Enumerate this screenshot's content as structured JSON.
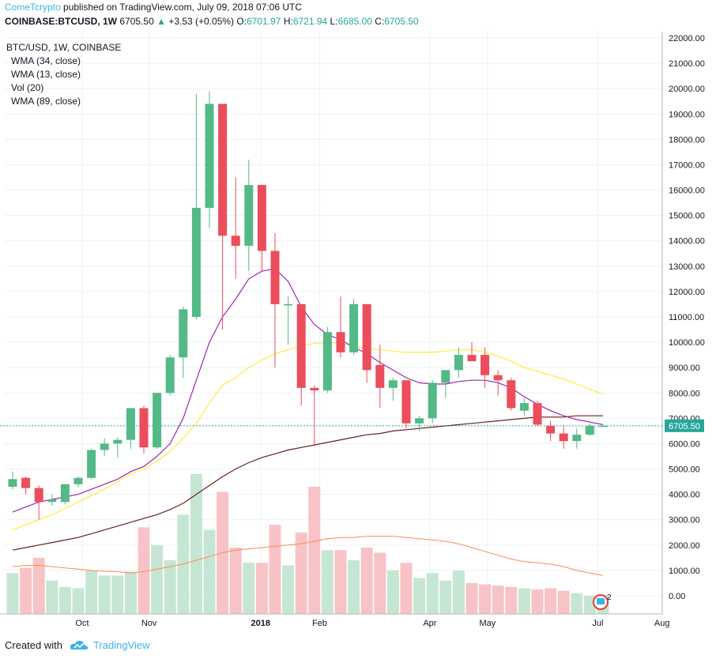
{
  "header": {
    "author": "ComeTcrypto",
    "published_text": "published on TradingView.com, July 09, 2018 07:06 UTC"
  },
  "ohlc": {
    "symbol": "COINBASE:BTCUSD, 1W",
    "last": "6705.50",
    "change": "+3.53 (+0.05%)",
    "open_label": "O:",
    "open": "6701.97",
    "high_label": "H:",
    "high": "6721.94",
    "low_label": "L:",
    "low": "6685.00",
    "close_label": "C:",
    "close": "6705.50"
  },
  "legend": {
    "title": "BTC/USD, 1W, COINBASE",
    "items": [
      "WMA (34, close)",
      "WMA (13, close)",
      "Vol (20)",
      "WMA (89, close)"
    ]
  },
  "price_label": "6705.50",
  "alert_count": "2",
  "footer": {
    "created": "Created with",
    "brand": "TradingView"
  },
  "colors": {
    "up": "#53b987",
    "down": "#eb4d5c",
    "vol_up": "#c5e6d3",
    "vol_down": "#f8c3c6",
    "wma34": "#ffeb3b",
    "wma13": "#9c27b0",
    "wma89": "#6b1e1e",
    "vol_ma": "#ff8a50",
    "grid": "#eef0f3",
    "last_line": "#26a69a"
  },
  "chart_data": {
    "type": "candlestick",
    "title": "BTC/USD, 1W, COINBASE",
    "ylim": [
      -600,
      22200
    ],
    "yticks": [
      0,
      1000,
      2000,
      3000,
      4000,
      5000,
      6000,
      7000,
      8000,
      9000,
      10000,
      11000,
      12000,
      13000,
      14000,
      15000,
      16000,
      17000,
      18000,
      19000,
      20000,
      21000,
      22000
    ],
    "ytick_labels": [
      "0.00",
      "1000.00",
      "2000.00",
      "3000.00",
      "4000.00",
      "5000.00",
      "6000.00",
      "7000.00",
      "8000.00",
      "9000.00",
      "10000.00",
      "11000.00",
      "12000.00",
      "13000.00",
      "14000.00",
      "15000.00",
      "16000.00",
      "17000.00",
      "18000.00",
      "19000.00",
      "20000.00",
      "21000.00",
      "22000.00"
    ],
    "xticks": [
      {
        "label": "Oct",
        "bar": 5.3
      },
      {
        "label": "Nov",
        "bar": 10.4
      },
      {
        "label": "2018",
        "bar": 18.9
      },
      {
        "label": "Feb",
        "bar": 23.4
      },
      {
        "label": "Apr",
        "bar": 31.8
      },
      {
        "label": "May",
        "bar": 36.2
      },
      {
        "label": "Jul",
        "bar": 44.6
      },
      {
        "label": "Aug",
        "bar": 49.5
      }
    ],
    "candles": [
      {
        "o": 4300,
        "h": 4900,
        "l": 4200,
        "c": 4600
      },
      {
        "o": 4650,
        "h": 4700,
        "l": 4000,
        "c": 4250
      },
      {
        "o": 4250,
        "h": 4350,
        "l": 3000,
        "c": 3700
      },
      {
        "o": 3700,
        "h": 4000,
        "l": 3550,
        "c": 3800
      },
      {
        "o": 3700,
        "h": 4400,
        "l": 3600,
        "c": 4400
      },
      {
        "o": 4400,
        "h": 4700,
        "l": 4300,
        "c": 4650
      },
      {
        "o": 4650,
        "h": 5800,
        "l": 4600,
        "c": 5750
      },
      {
        "o": 5750,
        "h": 6200,
        "l": 5500,
        "c": 6000
      },
      {
        "o": 6000,
        "h": 6250,
        "l": 5450,
        "c": 6150
      },
      {
        "o": 6150,
        "h": 7400,
        "l": 5800,
        "c": 7400
      },
      {
        "o": 7400,
        "h": 7500,
        "l": 5600,
        "c": 5850
      },
      {
        "o": 5850,
        "h": 8000,
        "l": 5800,
        "c": 8000
      },
      {
        "o": 8000,
        "h": 9500,
        "l": 7900,
        "c": 9400
      },
      {
        "o": 9400,
        "h": 11400,
        "l": 8600,
        "c": 11300
      },
      {
        "o": 11000,
        "h": 19800,
        "l": 10900,
        "c": 15300
      },
      {
        "o": 15300,
        "h": 19900,
        "l": 14500,
        "c": 19400
      },
      {
        "o": 19400,
        "h": 19400,
        "l": 10500,
        "c": 14200
      },
      {
        "o": 14200,
        "h": 16500,
        "l": 12500,
        "c": 13800
      },
      {
        "o": 13800,
        "h": 17200,
        "l": 12800,
        "c": 16200
      },
      {
        "o": 16200,
        "h": 16200,
        "l": 12800,
        "c": 13600
      },
      {
        "o": 13600,
        "h": 14300,
        "l": 9000,
        "c": 11500
      },
      {
        "o": 11450,
        "h": 11800,
        "l": 9900,
        "c": 11500
      },
      {
        "o": 11500,
        "h": 11500,
        "l": 7500,
        "c": 8200
      },
      {
        "o": 8200,
        "h": 8300,
        "l": 5900,
        "c": 8100
      },
      {
        "o": 8100,
        "h": 10600,
        "l": 8000,
        "c": 10400
      },
      {
        "o": 10400,
        "h": 11800,
        "l": 9400,
        "c": 9600
      },
      {
        "o": 9600,
        "h": 11700,
        "l": 9500,
        "c": 11500
      },
      {
        "o": 11500,
        "h": 11500,
        "l": 8400,
        "c": 8900
      },
      {
        "o": 9100,
        "h": 9900,
        "l": 7400,
        "c": 8200
      },
      {
        "o": 8200,
        "h": 8600,
        "l": 7700,
        "c": 8500
      },
      {
        "o": 8500,
        "h": 8500,
        "l": 6600,
        "c": 6800
      },
      {
        "o": 6800,
        "h": 7100,
        "l": 6500,
        "c": 7000
      },
      {
        "o": 7000,
        "h": 8500,
        "l": 6800,
        "c": 8400
      },
      {
        "o": 8400,
        "h": 8900,
        "l": 7800,
        "c": 8900
      },
      {
        "o": 8900,
        "h": 9800,
        "l": 8600,
        "c": 9500
      },
      {
        "o": 9500,
        "h": 10000,
        "l": 9300,
        "c": 9250
      },
      {
        "o": 9500,
        "h": 9800,
        "l": 8200,
        "c": 8700
      },
      {
        "o": 8700,
        "h": 8900,
        "l": 7900,
        "c": 8500
      },
      {
        "o": 8500,
        "h": 8600,
        "l": 7300,
        "c": 7400
      },
      {
        "o": 7300,
        "h": 7800,
        "l": 7100,
        "c": 7600
      },
      {
        "o": 7600,
        "h": 7700,
        "l": 6700,
        "c": 6750
      },
      {
        "o": 6700,
        "h": 6900,
        "l": 6100,
        "c": 6400
      },
      {
        "o": 6400,
        "h": 6700,
        "l": 5800,
        "c": 6100
      },
      {
        "o": 6100,
        "h": 6600,
        "l": 5800,
        "c": 6350
      },
      {
        "o": 6350,
        "h": 6800,
        "l": 6300,
        "c": 6700
      },
      {
        "o": 6700,
        "h": 6720,
        "l": 6685,
        "c": 6705
      }
    ],
    "volume": [
      900,
      1100,
      1500,
      600,
      350,
      300,
      1000,
      800,
      800,
      950,
      2700,
      2000,
      1400,
      3200,
      4800,
      2600,
      4100,
      1900,
      1300,
      1300,
      2800,
      1200,
      2500,
      4300,
      1800,
      1800,
      1400,
      1900,
      1700,
      1000,
      1300,
      700,
      900,
      600,
      1000,
      500,
      450,
      400,
      350,
      300,
      250,
      300,
      200,
      100,
      0,
      -150
    ],
    "vol_ma": [
      1150,
      1200,
      1200,
      1150,
      1100,
      1050,
      1000,
      970,
      950,
      900,
      950,
      1050,
      1150,
      1250,
      1400,
      1550,
      1700,
      1800,
      1850,
      1900,
      1950,
      2000,
      2050,
      2150,
      2250,
      2300,
      2300,
      2350,
      2350,
      2350,
      2300,
      2250,
      2200,
      2150,
      2050,
      1900,
      1750,
      1600,
      1450,
      1350,
      1300,
      1250,
      1150,
      1000,
      900,
      800
    ],
    "wma34": [
      null,
      null,
      null,
      null,
      null,
      null,
      null,
      null,
      null,
      null,
      null,
      null,
      null,
      null,
      null,
      null,
      null,
      null,
      null,
      null,
      null,
      null,
      null,
      null,
      null,
      null,
      null,
      null,
      null,
      null,
      null,
      null,
      null,
      null,
      null,
      null,
      null,
      null,
      null,
      null,
      null,
      null,
      null,
      null,
      null,
      null
    ],
    "wma34_line": [
      2600,
      2800,
      3000,
      3200,
      3450,
      3700,
      3950,
      4200,
      4500,
      4800,
      5000,
      5300,
      5700,
      6200,
      6800,
      7600,
      8300,
      8600,
      9000,
      9300,
      9550,
      9700,
      9850,
      9950,
      10000,
      9950,
      9850,
      9750,
      9700,
      9650,
      9600,
      9600,
      9600,
      9650,
      9700,
      9700,
      9600,
      9450,
      9250,
      9000,
      8850,
      8700,
      8550,
      8350,
      8150,
      7950
    ],
    "wma13_line": [
      3300,
      3500,
      3700,
      3800,
      3900,
      4000,
      4200,
      4400,
      4600,
      4900,
      5100,
      5500,
      6000,
      7000,
      8500,
      10000,
      11000,
      11700,
      12500,
      12800,
      12900,
      12400,
      11400,
      10700,
      10300,
      10100,
      9800,
      9550,
      9200,
      8900,
      8600,
      8400,
      8350,
      8350,
      8450,
      8500,
      8500,
      8400,
      8200,
      7850,
      7550,
      7300,
      7100,
      6950,
      6850,
      6750
    ],
    "wma89_line": [
      1800,
      1900,
      2000,
      2100,
      2200,
      2300,
      2450,
      2600,
      2750,
      2900,
      3050,
      3200,
      3400,
      3650,
      4000,
      4350,
      4700,
      5000,
      5250,
      5450,
      5600,
      5750,
      5850,
      5950,
      6050,
      6150,
      6250,
      6350,
      6400,
      6500,
      6550,
      6600,
      6650,
      6700,
      6750,
      6800,
      6850,
      6900,
      6950,
      7000,
      7050,
      7050,
      7050,
      7100,
      7100,
      7100
    ]
  }
}
